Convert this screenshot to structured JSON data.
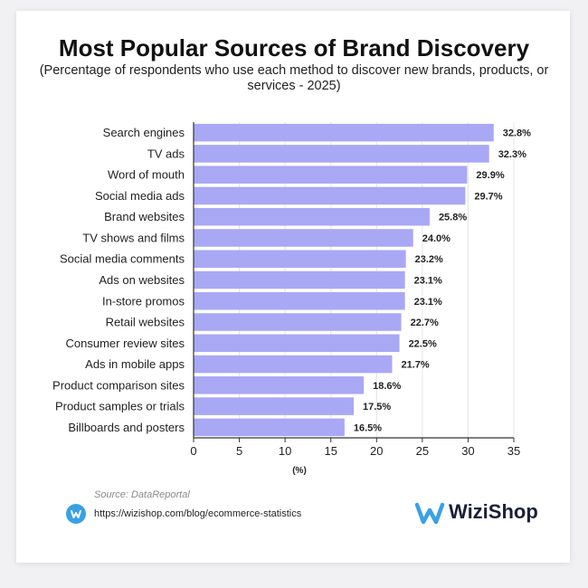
{
  "chart_data": {
    "type": "bar",
    "orientation": "horizontal",
    "title": "Most Popular Sources of Brand Discovery",
    "subtitle": "(Percentage of respondents who use each method to discover new brands, products, or services - 2025)",
    "xlabel": "(%)",
    "xlim": [
      0,
      35
    ],
    "xticks": [
      0,
      5,
      10,
      15,
      20,
      25,
      30,
      35
    ],
    "grid": true,
    "bar_color": "#a9a8f5",
    "categories": [
      "Search engines",
      "TV ads",
      "Word of mouth",
      "Social media ads",
      "Brand websites",
      "TV shows and films",
      "Social media comments",
      "Ads on websites",
      "In-store promos",
      "Retail websites",
      "Consumer review sites",
      "Ads in mobile apps",
      "Product comparison sites",
      "Product samples or trials",
      "Billboards and posters"
    ],
    "values": [
      32.8,
      32.3,
      29.9,
      29.7,
      25.8,
      24.0,
      23.2,
      23.1,
      23.1,
      22.7,
      22.5,
      21.7,
      18.6,
      17.5,
      16.5
    ],
    "value_labels": [
      "32.8%",
      "32.3%",
      "29.9%",
      "29.7%",
      "25.8%",
      "24.0%",
      "23.2%",
      "23.1%",
      "23.1%",
      "22.7%",
      "22.5%",
      "21.7%",
      "18.6%",
      "17.5%",
      "16.5%"
    ]
  },
  "footer": {
    "source": "Source: DataReportal",
    "url": "https://wizishop.com/blog/ecommerce-statistics",
    "link_icon": "wizishop-w-icon",
    "brand_name": "WiziShop",
    "brand_colors": [
      "#3aa0e6",
      "#1a1f3a"
    ]
  }
}
